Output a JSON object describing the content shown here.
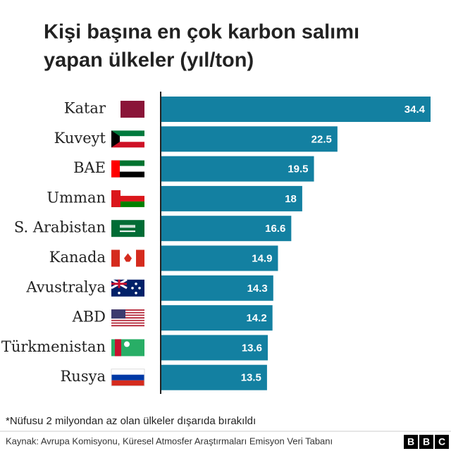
{
  "chart_data": {
    "type": "bar",
    "orientation": "horizontal",
    "title": [
      "Kişi başına en çok karbon salımı",
      "yapan ülkeler (yıl/ton)"
    ],
    "categories": [
      "Katar",
      "Kuveyt",
      "BAE",
      "Umman",
      "S. Arabistan",
      "Kanada",
      "Avustralya",
      "ABD",
      "Türkmenistan",
      "Rusya"
    ],
    "values": [
      34.4,
      22.5,
      19.5,
      18,
      16.6,
      14.9,
      14.3,
      14.2,
      13.6,
      13.5
    ],
    "color": "#1380a1",
    "note": "*Nüfusu 2 milyondan az olan ülkeler dışarıda bırakıldı",
    "source": "Kaynak: Avrupa Komisyonu, Küresel Atmosfer Araştırmaları Emisyon Veri Tabanı",
    "logo": [
      "B",
      "B",
      "C"
    ]
  }
}
